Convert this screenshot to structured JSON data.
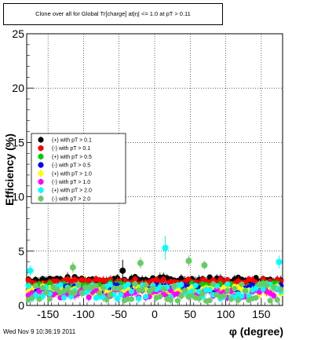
{
  "page": {
    "title": "Clone  over all for Global Tr[charge] at|η| <= 1.0 at pT > 0.11",
    "timestamp": "Wed Nov  9 10:36:19 2011"
  },
  "chart_data": {
    "type": "scatter",
    "title": "Clone  over all for Global Tr[charge] at|η| <= 1.0 at pT > 0.11",
    "xlabel": "φ (degree)",
    "ylabel": "Efficiency (%)",
    "xlim": [
      -180,
      180
    ],
    "ylim": [
      0,
      25
    ],
    "x_ticks": [
      -150,
      -100,
      -50,
      0,
      50,
      100,
      150
    ],
    "y_ticks": [
      0,
      5,
      10,
      15,
      20,
      25
    ],
    "grid": true,
    "legend_position": "left",
    "series": [
      {
        "name": "(+) with pT > 0.1",
        "color": "#000000",
        "marker": "circle",
        "base": 2.4,
        "amp": 0.25
      },
      {
        "name": "(-) with pT > 0.1",
        "color": "#ff0000",
        "marker": "circle",
        "base": 2.2,
        "amp": 0.25
      },
      {
        "name": "(+) with pT > 0.5",
        "color": "#00cc00",
        "marker": "circle",
        "base": 1.8,
        "amp": 0.3
      },
      {
        "name": "(-) with pT > 0.5",
        "color": "#0000ff",
        "marker": "circle",
        "base": 1.6,
        "amp": 0.3
      },
      {
        "name": "(+) with pT > 1.0",
        "color": "#ffff00",
        "marker": "circle",
        "base": 1.4,
        "amp": 0.4
      },
      {
        "name": "(-) with pT > 1.0",
        "color": "#ff00ff",
        "marker": "circle",
        "base": 1.1,
        "amp": 0.4
      },
      {
        "name": "(+) with pT > 2.0",
        "color": "#00ffff",
        "marker": "circle",
        "base": 1.3,
        "amp": 0.7
      },
      {
        "name": "(-) with pT > 2.0",
        "color": "#66cc66",
        "marker": "circle",
        "base": 1.2,
        "amp": 0.8
      }
    ],
    "outliers": [
      {
        "series": 6,
        "x": 15,
        "y": 5.3,
        "err": 1.1
      },
      {
        "series": 6,
        "x": 175,
        "y": 4.0,
        "err": 0.6
      },
      {
        "series": 6,
        "x": -175,
        "y": 3.2,
        "err": 0.5
      },
      {
        "series": 7,
        "x": 48,
        "y": 4.1,
        "err": 0.5
      },
      {
        "series": 7,
        "x": -20,
        "y": 3.9,
        "err": 0.5
      },
      {
        "series": 7,
        "x": -115,
        "y": 3.5,
        "err": 0.5
      },
      {
        "series": 7,
        "x": 70,
        "y": 3.7,
        "err": 0.4
      },
      {
        "series": 0,
        "x": -45,
        "y": 3.2,
        "err": 1.0
      }
    ]
  }
}
